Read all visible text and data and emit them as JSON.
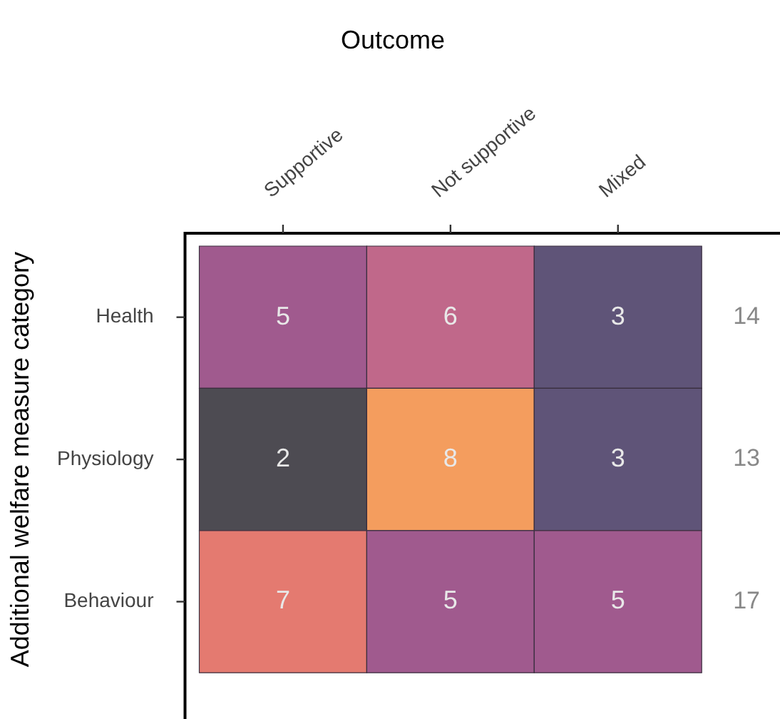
{
  "chart_data": {
    "type": "heatmap",
    "title": "Outcome",
    "ylabel": "Additional welfare measure category",
    "categories": [
      "Supportive",
      "Not supportive",
      "Mixed"
    ],
    "y_categories": [
      "Health",
      "Physiology",
      "Behaviour"
    ],
    "y2_categories": [
      "14",
      "13",
      "17"
    ],
    "data_labels": true,
    "cells": [
      [
        5,
        6,
        3
      ],
      [
        2,
        8,
        3
      ],
      [
        7,
        5,
        5
      ]
    ]
  }
}
